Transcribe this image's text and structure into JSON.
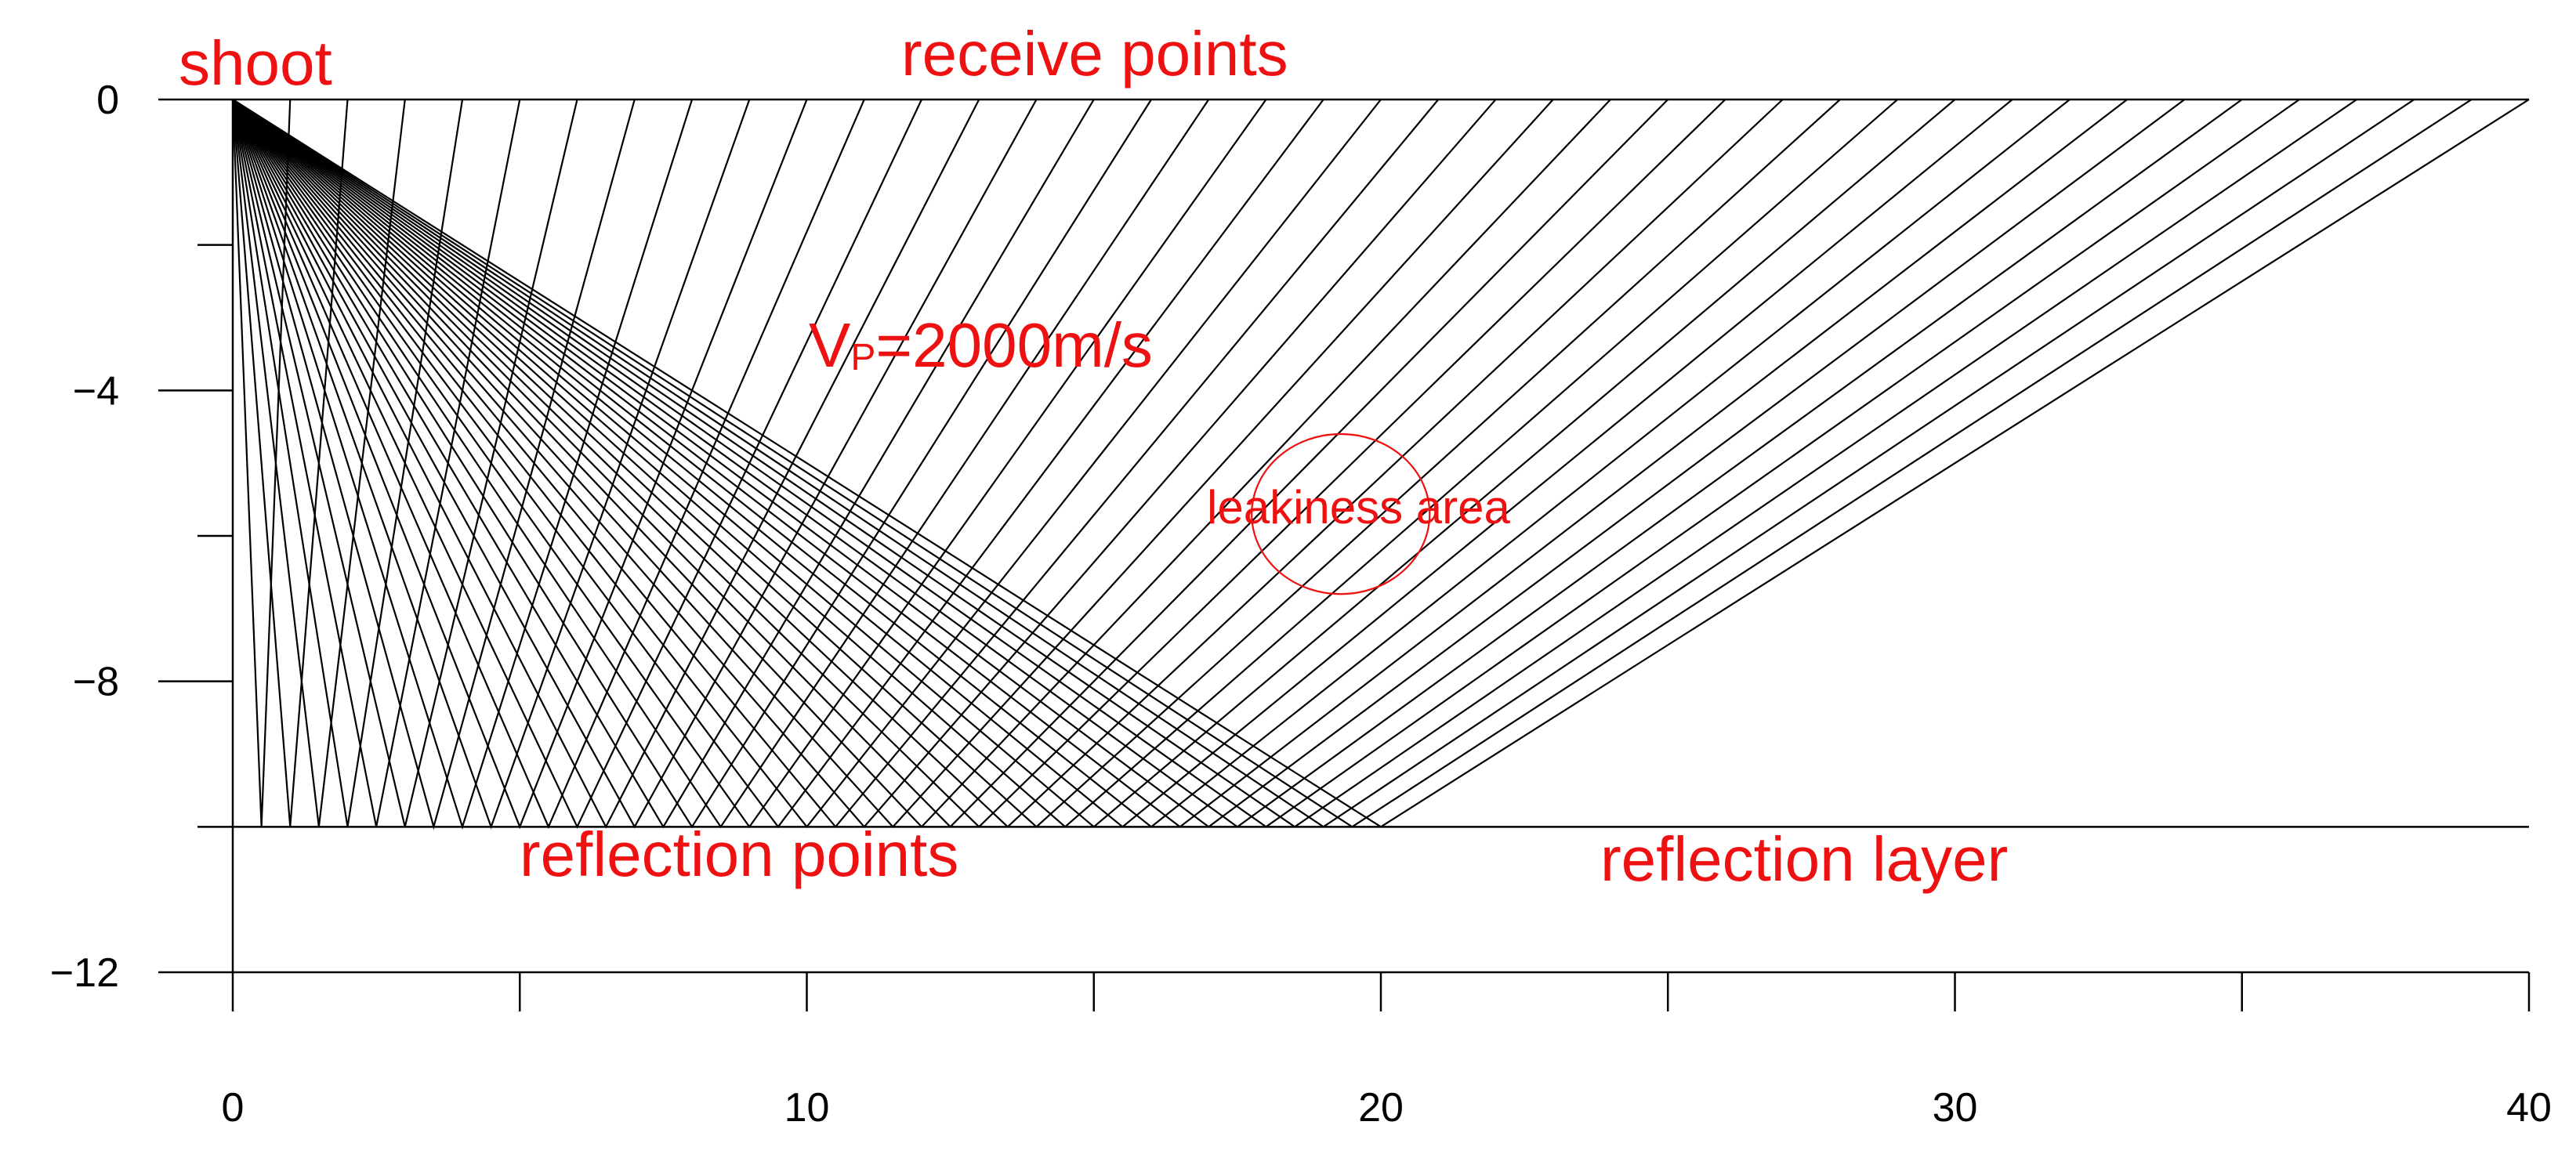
{
  "chart_data": {
    "type": "ray-diagram",
    "title": "",
    "xlabel": "",
    "ylabel": "",
    "xlim": [
      0,
      40
    ],
    "ylim": [
      -12,
      0
    ],
    "x_ticks": [
      {
        "value": 0,
        "label": "0"
      },
      {
        "value": 10,
        "label": "10"
      },
      {
        "value": 20,
        "label": "20"
      },
      {
        "value": 30,
        "label": "30"
      },
      {
        "value": 40,
        "label": "40"
      }
    ],
    "x_minor_ticks": [
      5,
      15,
      25,
      35
    ],
    "y_ticks": [
      {
        "value": 0,
        "label": "0"
      },
      {
        "value": -4,
        "label": "−4"
      },
      {
        "value": -8,
        "label": "−8"
      },
      {
        "value": -12,
        "label": "−12"
      }
    ],
    "y_minor_ticks": [
      -2,
      -6,
      -10
    ],
    "shoot_point": {
      "x": 0,
      "y": 0
    },
    "reflector_depth": -10,
    "receivers_x": [
      0,
      1,
      2,
      3,
      4,
      5,
      6,
      7,
      8,
      9,
      10,
      11,
      12,
      13,
      14,
      15,
      16,
      17,
      18,
      19,
      20,
      21,
      22,
      23,
      24,
      25,
      26,
      27,
      28,
      29,
      30,
      31,
      32,
      33,
      34,
      35,
      36,
      37,
      38,
      39,
      40
    ],
    "leak_circle": {
      "cx": 19.3,
      "cy": -5.7,
      "rx": 1.55,
      "ry": 1.1
    },
    "annotations": {
      "shoot": "shoot",
      "receive_points": "receive points",
      "velocity_main": "V",
      "velocity_sub": "P",
      "velocity_value": "=2000m/s",
      "leak_area": "leakiness area",
      "reflection_points": "reflection points",
      "reflection_layer": "reflection layer"
    },
    "colors": {
      "rays": "#000000",
      "annotations": "#ee1111"
    }
  }
}
